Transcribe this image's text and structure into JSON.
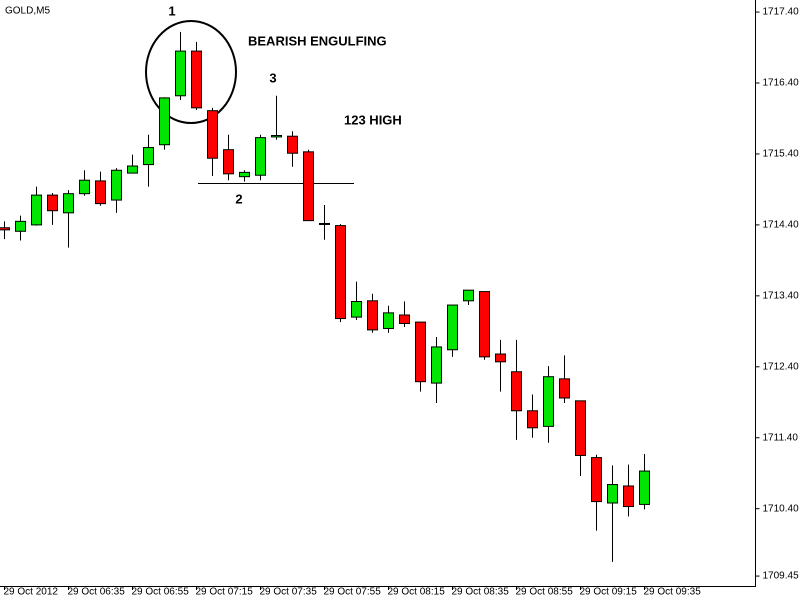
{
  "chart_data": {
    "type": "candlestick",
    "symbol": "GOLD,M5",
    "annotations": [
      "1",
      "BEARISH ENGULFING",
      "3",
      "123 HIGH",
      "2"
    ],
    "categories": [
      "29 Oct 2012",
      null,
      null,
      null,
      "29 Oct 06:35",
      null,
      null,
      null,
      "29 Oct 06:55",
      null,
      null,
      null,
      "29 Oct 07:15",
      null,
      null,
      null,
      "29 Oct 07:35",
      null,
      null,
      null,
      "29 Oct 07:55",
      null,
      null,
      null,
      "29 Oct 08:15",
      null,
      null,
      null,
      "29 Oct 08:35",
      null,
      null,
      null,
      "29 Oct 08:55",
      null,
      null,
      null,
      "29 Oct 09:15",
      null,
      null,
      null,
      "29 Oct 09:35"
    ],
    "open": [
      1714.36,
      1714.31,
      1714.4,
      1714.82,
      1714.57,
      1714.84,
      1715.02,
      1714.75,
      1715.13,
      1715.25,
      1715.53,
      1716.22,
      1716.85,
      1716.01,
      1715.46,
      1715.08,
      1715.1,
      1715.64,
      1715.65,
      1715.43,
      1714.42,
      1714.39,
      1713.1,
      1713.33,
      1712.94,
      1713.13,
      1713.03,
      1712.17,
      1712.64,
      1713.33,
      1713.46,
      1712.58,
      1712.33,
      1711.78,
      1711.56,
      1712.23,
      1711.92,
      1711.12,
      1710.48,
      1710.72,
      1710.46
    ],
    "high": [
      1714.45,
      1714.53,
      1714.94,
      1714.85,
      1714.89,
      1715.17,
      1715.15,
      1715.2,
      1715.39,
      1715.67,
      1716.2,
      1717.12,
      1716.98,
      1716.05,
      1715.67,
      1715.17,
      1715.67,
      1716.22,
      1715.72,
      1715.46,
      1714.68,
      1714.41,
      1713.6,
      1713.43,
      1713.26,
      1713.32,
      1713.03,
      1712.82,
      1713.27,
      1713.48,
      1713.46,
      1712.78,
      1712.78,
      1712.01,
      1712.41,
      1712.56,
      1711.92,
      1711.16,
      1711.01,
      1711.02,
      1711.17
    ],
    "low": [
      1714.2,
      1714.18,
      1714.39,
      1714.4,
      1714.08,
      1714.81,
      1714.67,
      1714.57,
      1715.13,
      1714.94,
      1715.46,
      1716.16,
      1716.02,
      1715.09,
      1715.03,
      1715.01,
      1715.03,
      1715.6,
      1715.22,
      1714.46,
      1714.19,
      1713.03,
      1713.06,
      1712.88,
      1712.88,
      1712.96,
      1712.05,
      1711.89,
      1712.54,
      1713.27,
      1712.5,
      1712.05,
      1711.37,
      1711.4,
      1711.33,
      1711.89,
      1710.86,
      1710.09,
      1709.65,
      1710.29,
      1710.39
    ],
    "close": [
      1714.33,
      1714.45,
      1714.82,
      1714.6,
      1714.84,
      1715.03,
      1714.7,
      1715.17,
      1715.23,
      1715.49,
      1716.19,
      1716.85,
      1716.05,
      1715.34,
      1715.12,
      1715.14,
      1715.63,
      1715.66,
      1715.41,
      1714.46,
      1714.41,
      1713.08,
      1713.32,
      1712.92,
      1713.16,
      1713.01,
      1712.19,
      1712.68,
      1713.27,
      1713.48,
      1712.54,
      1712.47,
      1711.78,
      1711.54,
      1712.26,
      1711.96,
      1711.15,
      1710.5,
      1710.74,
      1710.43,
      1710.93
    ],
    "up_color": "#00e600",
    "down_color": "#ff0000",
    "ylim": [
      1709.31,
      1717.57
    ],
    "yticks": [
      {
        "value": 1717.4,
        "label": "1717.40"
      },
      {
        "value": 1716.4,
        "label": "1716.40"
      },
      {
        "value": 1715.4,
        "label": "1715.40"
      },
      {
        "value": 1714.4,
        "label": "1714.40"
      },
      {
        "value": 1713.4,
        "label": "1713.40"
      },
      {
        "value": 1712.4,
        "label": "1712.40"
      },
      {
        "value": 1711.4,
        "label": "1711.40"
      },
      {
        "value": 1710.4,
        "label": "1710.40"
      },
      1709.45
    ]
  }
}
